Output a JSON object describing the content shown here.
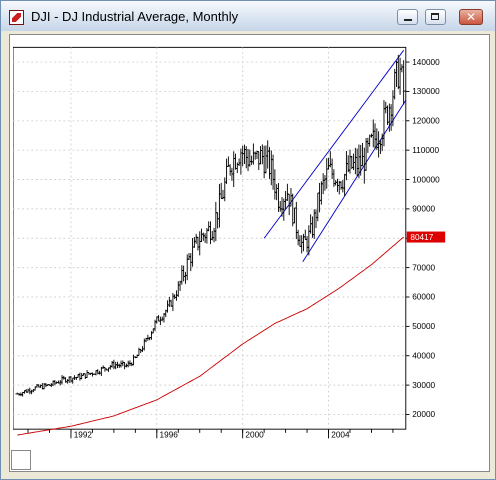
{
  "window": {
    "title": "DJI - DJ Industrial Average, Monthly",
    "buttons": [
      "minimize",
      "maximize",
      "close"
    ]
  },
  "colors": {
    "price_bars": "#000000",
    "moving_average": "#cc0000",
    "channel_lines": "#0000cc",
    "last_value_badge": "#dd0000"
  },
  "chart_data": {
    "type": "ohlc",
    "title": "DJI - DJ Industrial Average, Monthly",
    "x_tick_labels": [
      "1992",
      "1996",
      "2000",
      "2004"
    ],
    "y_tick_labels": [
      "20000",
      "30000",
      "40000",
      "50000",
      "60000",
      "70000",
      "80000",
      "90000",
      "100000",
      "110000",
      "120000",
      "130000",
      "140000"
    ],
    "ylim": [
      15000,
      145000
    ],
    "xlim": [
      1989.3,
      2007.6
    ],
    "grid": true,
    "last_value_label": "80417",
    "price_anchors": [
      [
        1989.5,
        27000
      ],
      [
        1990.3,
        29000
      ],
      [
        1991.0,
        30000
      ],
      [
        1991.7,
        32000
      ],
      [
        1992.5,
        33000
      ],
      [
        1993.3,
        35000
      ],
      [
        1994.0,
        37000
      ],
      [
        1994.6,
        36500
      ],
      [
        1995.0,
        39000
      ],
      [
        1995.5,
        45000
      ],
      [
        1996.0,
        52000
      ],
      [
        1996.5,
        56000
      ],
      [
        1997.0,
        63000
      ],
      [
        1997.5,
        73000
      ],
      [
        1998.0,
        80000
      ],
      [
        1998.6,
        84000
      ],
      [
        1999.0,
        93000
      ],
      [
        1999.4,
        105000
      ],
      [
        1999.9,
        110000
      ],
      [
        2000.4,
        106000
      ],
      [
        2000.9,
        108000
      ],
      [
        2001.3,
        104000
      ],
      [
        2001.7,
        93000
      ],
      [
        2002.1,
        96000
      ],
      [
        2002.5,
        84000
      ],
      [
        2002.8,
        77000
      ],
      [
        2003.2,
        82000
      ],
      [
        2003.6,
        95000
      ],
      [
        2004.0,
        103000
      ],
      [
        2004.6,
        100000
      ],
      [
        2005.0,
        104000
      ],
      [
        2005.6,
        106000
      ],
      [
        2006.0,
        112000
      ],
      [
        2006.5,
        118000
      ],
      [
        2006.9,
        127000
      ],
      [
        2007.3,
        138000
      ],
      [
        2007.5,
        130000
      ]
    ],
    "moving_average": [
      [
        1989.5,
        13000
      ],
      [
        1992.0,
        16000
      ],
      [
        1994.0,
        19500
      ],
      [
        1996.0,
        25000
      ],
      [
        1998.0,
        33000
      ],
      [
        2000.0,
        44000
      ],
      [
        2001.5,
        51000
      ],
      [
        2003.0,
        56000
      ],
      [
        2004.5,
        63000
      ],
      [
        2006.0,
        71000
      ],
      [
        2007.5,
        80417
      ]
    ],
    "channel": {
      "upper": [
        [
          2001.0,
          80000
        ],
        [
          2007.5,
          144000
        ]
      ],
      "lower": [
        [
          2002.8,
          72000
        ],
        [
          2007.6,
          127000
        ]
      ]
    }
  }
}
